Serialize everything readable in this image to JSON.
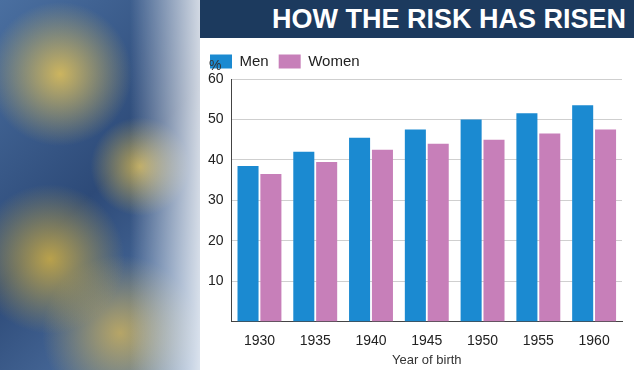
{
  "chart_data": {
    "type": "bar",
    "title": "HOW THE RISK HAS RISEN",
    "categories": [
      "1930",
      "1935",
      "1940",
      "1945",
      "1950",
      "1955",
      "1960"
    ],
    "series": [
      {
        "name": "Men",
        "color": "#1b8ad1",
        "values": [
          38.5,
          42,
          45.5,
          47.5,
          50,
          51.5,
          53.5
        ]
      },
      {
        "name": "Women",
        "color": "#c77fb9",
        "values": [
          36.5,
          39.5,
          42.5,
          44,
          45,
          46.5,
          47.5
        ]
      }
    ],
    "x_label": "Year of birth",
    "y_label": "%",
    "ylim": [
      0,
      60
    ],
    "yticks": [
      10,
      20,
      30,
      40,
      50,
      60
    ],
    "grid": true,
    "legend": "top-left",
    "data_labels": false
  }
}
